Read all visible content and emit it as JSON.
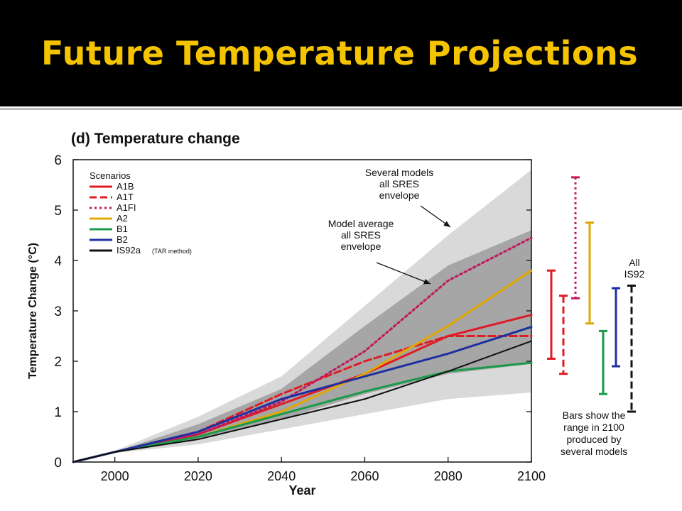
{
  "slide": {
    "title": "Future Temperature Projections",
    "colors": {
      "title": "#f5c400",
      "title_bar": "#000000"
    }
  },
  "chart_data": {
    "type": "line",
    "panel_title": "(d) Temperature change",
    "xlabel": "Year",
    "ylabel": "Temperature Change (°C)",
    "xlim": [
      1990,
      2100
    ],
    "ylim": [
      0,
      6
    ],
    "xticks": [
      2000,
      2020,
      2040,
      2060,
      2080,
      2100
    ],
    "yticks": [
      0,
      1,
      2,
      3,
      4,
      5,
      6
    ],
    "legend_title": "Scenarios",
    "legend_position": "top-left",
    "series": [
      {
        "name": "A1B",
        "color": "#e01b24",
        "dash": "solid",
        "x": [
          1990,
          2000,
          2020,
          2040,
          2060,
          2080,
          2100
        ],
        "y": [
          0,
          0.2,
          0.55,
          1.15,
          1.75,
          2.5,
          2.92
        ]
      },
      {
        "name": "A1T",
        "color": "#e01b24",
        "dash": "dashed",
        "x": [
          1990,
          2000,
          2020,
          2040,
          2060,
          2080,
          2100
        ],
        "y": [
          0,
          0.2,
          0.6,
          1.35,
          2.0,
          2.5,
          2.5
        ]
      },
      {
        "name": "A1FI",
        "color": "#c2185b",
        "dash": "dotted",
        "x": [
          1990,
          2000,
          2020,
          2040,
          2060,
          2080,
          2100
        ],
        "y": [
          0,
          0.2,
          0.55,
          1.2,
          2.2,
          3.6,
          4.45
        ]
      },
      {
        "name": "A2",
        "color": "#e0a800",
        "dash": "solid",
        "x": [
          1990,
          2000,
          2020,
          2040,
          2060,
          2080,
          2100
        ],
        "y": [
          0,
          0.2,
          0.5,
          1.0,
          1.75,
          2.7,
          3.8
        ]
      },
      {
        "name": "B1",
        "color": "#1a9a4a",
        "dash": "solid",
        "x": [
          1990,
          2000,
          2020,
          2040,
          2060,
          2080,
          2100
        ],
        "y": [
          0,
          0.2,
          0.5,
          0.95,
          1.4,
          1.8,
          1.97
        ]
      },
      {
        "name": "B2",
        "color": "#1f2fa0",
        "dash": "solid",
        "x": [
          1990,
          2000,
          2020,
          2040,
          2060,
          2080,
          2100
        ],
        "y": [
          0,
          0.2,
          0.6,
          1.25,
          1.7,
          2.15,
          2.68
        ]
      },
      {
        "name": "IS92a",
        "name_note": "(TAR method)",
        "color": "#111111",
        "dash": "solid",
        "x": [
          1990,
          2000,
          2020,
          2040,
          2060,
          2080,
          2100
        ],
        "y": [
          0,
          0.2,
          0.45,
          0.85,
          1.25,
          1.8,
          2.4
        ]
      }
    ],
    "envelopes": [
      {
        "label": [
          "Several models",
          "all SRES",
          "envelope"
        ],
        "color": "#d9d9d9",
        "x": [
          1990,
          2000,
          2020,
          2040,
          2060,
          2080,
          2100
        ],
        "lower": [
          0,
          0.18,
          0.35,
          0.65,
          0.95,
          1.25,
          1.38
        ],
        "upper": [
          0,
          0.22,
          0.9,
          1.7,
          3.1,
          4.5,
          5.8
        ]
      },
      {
        "label": [
          "Model average",
          "all SRES",
          "envelope"
        ],
        "color": "#a6a6a6",
        "x": [
          1990,
          2000,
          2020,
          2040,
          2060,
          2080,
          2100
        ],
        "lower": [
          0,
          0.2,
          0.45,
          0.85,
          1.35,
          1.75,
          1.95
        ],
        "upper": [
          0,
          0.2,
          0.75,
          1.45,
          2.7,
          3.9,
          4.6
        ]
      }
    ],
    "range_bars": [
      {
        "scenario": "A1B",
        "color": "#e01b24",
        "dash": "solid",
        "low": 2.05,
        "high": 3.8
      },
      {
        "scenario": "A1T",
        "color": "#e01b24",
        "dash": "dashed",
        "low": 1.75,
        "high": 3.3
      },
      {
        "scenario": "A1FI",
        "color": "#c2185b",
        "dash": "dotted",
        "low": 3.25,
        "high": 5.65
      },
      {
        "scenario": "A2",
        "color": "#e0a800",
        "dash": "solid",
        "low": 2.75,
        "high": 4.75
      },
      {
        "scenario": "B1",
        "color": "#1a9a4a",
        "dash": "solid",
        "low": 1.35,
        "high": 2.6
      },
      {
        "scenario": "B2",
        "color": "#1f2fa0",
        "dash": "solid",
        "low": 1.9,
        "high": 3.45
      },
      {
        "scenario": "All IS92",
        "color": "#111111",
        "dash": "dashed",
        "low": 1.0,
        "high": 3.5
      }
    ],
    "range_bars_label": [
      "All",
      "IS92"
    ],
    "range_note": [
      "Bars show the",
      "range in 2100",
      "produced by",
      "several models"
    ]
  }
}
